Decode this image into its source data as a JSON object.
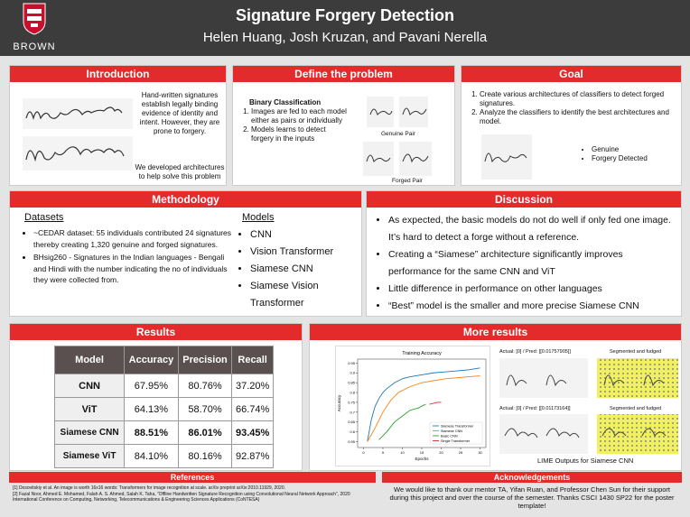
{
  "header": {
    "title": "Signature Forgery Detection",
    "authors": "Helen Huang, Josh Kruzan, and Pavani Nerella",
    "logo_text": "BROWN"
  },
  "introduction": {
    "title": "Introduction",
    "paragraphs": [
      "Hand-written signatures establish legally binding evidence of identity and intent. However, they are prone to forgery.",
      "We developed architectures  to help solve this problem"
    ]
  },
  "define": {
    "title": "Define the problem",
    "heading": "Binary Classification",
    "items": [
      "Images are fed to each model either as pairs or individually",
      "Models learns to detect forgery in the inputs"
    ],
    "captions": [
      "Genuine Pair",
      "Forged Pair"
    ]
  },
  "goal": {
    "title": "Goal",
    "items": [
      "Create various architectures of classifiers to detect forged signatures.",
      "Analyze the classifiers to identify the best architectures and model."
    ],
    "legend": [
      "Genuine",
      "Forgery Detected"
    ]
  },
  "methodology": {
    "title": "Methodology",
    "datasets_heading": "Datasets",
    "datasets": [
      "~CEDAR dataset: 55 individuals contributed 24 signatures thereby creating 1,320 genuine and forged signatures.",
      "BHsig260 - Signatures in the Indian languages - Bengali and Hindi with the number indicating the no of individuals they were collected from."
    ],
    "models_heading": "Models",
    "models": [
      "CNN",
      "Vision Transformer",
      "Siamese CNN",
      "Siamese Vision Transformer"
    ]
  },
  "discussion": {
    "title": "Discussion",
    "items": [
      "As expected, the basic models do not do well if only fed one image. It’s hard to detect a forge without a reference.",
      "Creating a “Siamese” architecture significantly improves performance for the same CNN and ViT",
      "Little difference in performance on other languages",
      "“Best” model is the smaller and more precise Siamese CNN"
    ]
  },
  "results": {
    "title": "Results",
    "table": {
      "header": [
        "Model",
        "Accuracy",
        "Precision",
        "Recall"
      ],
      "rows": [
        [
          "CNN",
          "67.95%",
          "80.76%",
          "37.20%"
        ],
        [
          "ViT",
          "64.13%",
          "58.70%",
          "66.74%"
        ],
        [
          "Siamese CNN",
          "88.51%",
          "86.01%",
          "93.45%"
        ],
        [
          "Siamese ViT",
          "84.10%",
          "80.16%",
          "92.87%"
        ]
      ]
    }
  },
  "more_results": {
    "title": "More results",
    "chart": {
      "type": "line",
      "title": "Training Accuracy",
      "x_label": "Epochs",
      "y_label": "Accuracy",
      "xlim": [
        -1.5,
        31.5
      ],
      "ylim": [
        0.52,
        0.97
      ],
      "xticks": [
        0,
        5,
        10,
        15,
        20,
        25,
        30
      ],
      "yticks": [
        0.55,
        0.6,
        0.65,
        0.7,
        0.75,
        0.8,
        0.85,
        0.9,
        0.95
      ],
      "series": [
        {
          "name": "Siamese Transformer",
          "color": "#1f77b4",
          "x": [
            1,
            2,
            3,
            4,
            5,
            6,
            8,
            10,
            12,
            15,
            18,
            21,
            24,
            27,
            30
          ],
          "values": [
            0.55,
            0.66,
            0.73,
            0.77,
            0.8,
            0.82,
            0.85,
            0.87,
            0.88,
            0.89,
            0.9,
            0.905,
            0.91,
            0.915,
            0.925
          ]
        },
        {
          "name": "Siamese CNN",
          "color": "#ff7f0e",
          "x": [
            1,
            3,
            5,
            7,
            9,
            12,
            15,
            18,
            21,
            24,
            27,
            30
          ],
          "values": [
            0.55,
            0.62,
            0.7,
            0.76,
            0.8,
            0.83,
            0.85,
            0.86,
            0.87,
            0.875,
            0.88,
            0.885
          ]
        },
        {
          "name": "Basic CNN",
          "color": "#2ca02c",
          "x": [
            4,
            6,
            8,
            10,
            12,
            14,
            16
          ],
          "values": [
            0.56,
            0.6,
            0.65,
            0.68,
            0.71,
            0.72,
            0.74
          ]
        },
        {
          "name": "Single Transformer",
          "color": "#d62728",
          "x": [
            17,
            18,
            19,
            20
          ],
          "values": [
            0.74,
            0.745,
            0.75,
            0.75
          ]
        }
      ]
    },
    "lime": [
      {
        "label": "Actual: [0] / Pred: [[0.01757905]]",
        "caption": "Segmented and fudged"
      },
      {
        "label": "Actual: [0] / Pred: [[0.01173164]]",
        "caption": "Segmented and fudged"
      }
    ],
    "lime_caption": "LIME Outputs for Siamese CNN"
  },
  "references": {
    "title": "References",
    "items": [
      "[1] Dosovitskiy et al. An image is worth 16x16 words: Transformers for image recognition at scale. arXiv preprint arXiv:2010.11929, 2020.",
      "[2] Fazal Noor, Ahmed E. Mohamed, Falah A. S. Ahmed, Salah K. Taha, “Offline Handwritten Signature Recognition using Convolutional Neural Network Approach”, 2020 International Conference on Computing, Networking, Telecommunications & Engineering Sciences Applications (CoNTESA)"
    ]
  },
  "acknowledgements": {
    "title": "Acknowledgements",
    "text": "We would like to thank our mentor TA, Yifan Ruan, and Professor Chen Sun for their support during this project and over the course of the semester. Thanks CSCI 1430 SP22 for the poster template!"
  }
}
